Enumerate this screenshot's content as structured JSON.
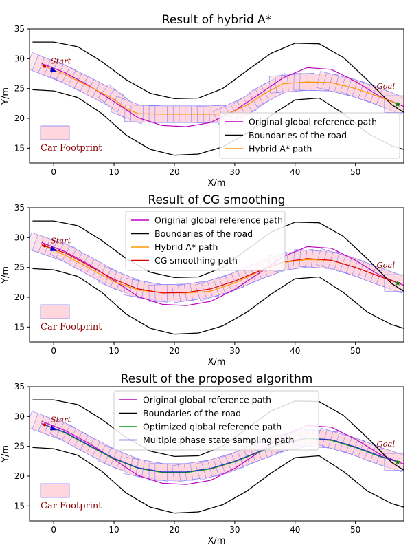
{
  "chart_data": [
    {
      "type": "line",
      "title": "Result of hybrid A*",
      "xlabel": "X/m",
      "ylabel": "Y/m",
      "xlim": [
        -4,
        58
      ],
      "ylim": [
        12.5,
        35
      ],
      "xticks": [
        0,
        10,
        20,
        30,
        40,
        50
      ],
      "yticks": [
        15,
        20,
        25,
        30,
        35
      ],
      "legend": [
        "Original global reference path",
        "Boundaries of the road",
        "Hybrid A* path"
      ],
      "legend_position": "lower-right",
      "annotations": {
        "start": "Start",
        "goal": "Goal",
        "footprint": "Car Footprint"
      },
      "series": [
        {
          "name": "Original global reference path",
          "color": "#c000c0",
          "x": [
            -2,
            2,
            6,
            10,
            14,
            18,
            22,
            26,
            30,
            34,
            38,
            42,
            46,
            50,
            54,
            58
          ],
          "y": [
            29.2,
            27.6,
            25.4,
            22.8,
            20.1,
            18.8,
            18.6,
            19.3,
            21.3,
            24.0,
            26.8,
            28.5,
            28.2,
            26.2,
            23.7,
            22.0
          ]
        },
        {
          "name": "Boundaries of the road",
          "color": "#000000",
          "x": [
            -3.5,
            0,
            4,
            8,
            12,
            16,
            20,
            24,
            28,
            32,
            36,
            40,
            44,
            48,
            52,
            56,
            58
          ],
          "y": [
            32.8,
            32.8,
            32.0,
            29.5,
            26.5,
            24.2,
            23.3,
            23.4,
            25.0,
            28.0,
            30.9,
            32.6,
            32.5,
            30.2,
            26.4,
            22.3,
            21.0
          ]
        },
        {
          "name": "Boundaries of the road (lower)",
          "color": "#000000",
          "x": [
            -3.5,
            0,
            4,
            8,
            12,
            16,
            20,
            24,
            28,
            32,
            36,
            40,
            44,
            48,
            52,
            56,
            58
          ],
          "y": [
            24.8,
            24.6,
            23.5,
            20.8,
            17.2,
            14.8,
            13.8,
            14.0,
            15.2,
            17.5,
            20.5,
            23.1,
            23.4,
            20.8,
            17.5,
            15.4,
            14.8
          ]
        },
        {
          "name": "Hybrid A* path",
          "color": "#ff9900",
          "x": [
            -2,
            2,
            6,
            10,
            12,
            14,
            18,
            22,
            26,
            29,
            32,
            35,
            38,
            42,
            46,
            50,
            54,
            57
          ],
          "y": [
            28.9,
            27.3,
            25.3,
            23.2,
            21.6,
            20.8,
            20.7,
            20.7,
            20.7,
            20.8,
            22.2,
            24.2,
            25.8,
            26.1,
            26.0,
            25.0,
            23.6,
            22.4
          ]
        }
      ]
    },
    {
      "type": "line",
      "title": "Result of CG smoothing",
      "xlabel": "X/m",
      "ylabel": "Y/m",
      "xlim": [
        -4,
        58
      ],
      "ylim": [
        12.5,
        35
      ],
      "xticks": [
        0,
        10,
        20,
        30,
        40,
        50
      ],
      "yticks": [
        15,
        20,
        25,
        30,
        35
      ],
      "legend": [
        "Original global reference path",
        "Boundaries of the road",
        "Hybrid A* path",
        "CG smoothing path"
      ],
      "legend_position": "upper-center",
      "annotations": {
        "start": "Start",
        "goal": "Goal",
        "footprint": "Car Footprint"
      },
      "series": [
        {
          "name": "Original global reference path",
          "color": "#c000c0",
          "x": [
            -2,
            2,
            6,
            10,
            14,
            18,
            22,
            26,
            30,
            34,
            38,
            42,
            46,
            50,
            54,
            58
          ],
          "y": [
            29.2,
            27.6,
            25.4,
            22.8,
            20.1,
            18.8,
            18.6,
            19.3,
            21.3,
            24.0,
            26.8,
            28.5,
            28.2,
            26.2,
            23.7,
            22.0
          ]
        },
        {
          "name": "Boundaries of the road",
          "color": "#000000",
          "x": [
            -3.5,
            0,
            4,
            8,
            12,
            16,
            20,
            24,
            28,
            32,
            36,
            40,
            44,
            48,
            52,
            56,
            58
          ],
          "y": [
            32.8,
            32.8,
            32.0,
            29.5,
            26.5,
            24.2,
            23.3,
            23.4,
            25.0,
            28.0,
            30.9,
            32.6,
            32.5,
            30.2,
            26.4,
            22.3,
            21.0
          ]
        },
        {
          "name": "Boundaries of the road (lower)",
          "color": "#000000",
          "x": [
            -3.5,
            0,
            4,
            8,
            12,
            16,
            20,
            24,
            28,
            32,
            36,
            40,
            44,
            48,
            52,
            56,
            58
          ],
          "y": [
            24.8,
            24.6,
            23.5,
            20.8,
            17.2,
            14.8,
            13.8,
            14.0,
            15.2,
            17.5,
            20.5,
            23.1,
            23.4,
            20.8,
            17.5,
            15.4,
            14.8
          ]
        },
        {
          "name": "Hybrid A* path",
          "color": "#ff9900",
          "x": [
            -2,
            2,
            6,
            10,
            14,
            18,
            22,
            26,
            30,
            34,
            38,
            42,
            46,
            50,
            54,
            57
          ],
          "y": [
            28.8,
            27.0,
            24.8,
            22.6,
            21.2,
            20.8,
            20.7,
            21.0,
            22.4,
            24.3,
            25.8,
            26.3,
            26.2,
            25.0,
            23.5,
            22.4
          ]
        },
        {
          "name": "CG smoothing path",
          "color": "#e00000",
          "x": [
            -2,
            2,
            6,
            10,
            14,
            18,
            22,
            26,
            30,
            34,
            38,
            42,
            46,
            50,
            54,
            57
          ],
          "y": [
            28.8,
            27.4,
            25.2,
            23.0,
            21.4,
            20.7,
            20.8,
            21.4,
            22.7,
            24.4,
            25.9,
            26.5,
            26.2,
            25.0,
            23.5,
            22.4
          ]
        }
      ]
    },
    {
      "type": "line",
      "title": "Result of the proposed algorithm",
      "xlabel": "X/m",
      "ylabel": "Y/m",
      "xlim": [
        -4,
        58
      ],
      "ylim": [
        12.5,
        35
      ],
      "xticks": [
        0,
        10,
        20,
        30,
        40,
        50
      ],
      "yticks": [
        15,
        20,
        25,
        30,
        35
      ],
      "legend": [
        "Original global reference path",
        "Boundaries of the road",
        "Optimized global reference path",
        "Multiple phase state sampling path"
      ],
      "legend_position": "upper-center",
      "annotations": {
        "start": "Start",
        "goal": "Goal",
        "footprint": "Car Footprint"
      },
      "series": [
        {
          "name": "Original global reference path",
          "color": "#c000c0",
          "x": [
            -2,
            2,
            6,
            10,
            14,
            18,
            22,
            26,
            30,
            34,
            38,
            42,
            46,
            50,
            54,
            58
          ],
          "y": [
            29.2,
            27.6,
            25.4,
            22.8,
            20.1,
            18.8,
            18.6,
            19.3,
            21.3,
            24.0,
            26.8,
            28.5,
            28.2,
            26.2,
            23.7,
            22.0
          ]
        },
        {
          "name": "Boundaries of the road",
          "color": "#000000",
          "x": [
            -3.5,
            0,
            4,
            8,
            12,
            16,
            20,
            24,
            28,
            32,
            36,
            40,
            44,
            48,
            52,
            56,
            58
          ],
          "y": [
            32.8,
            32.8,
            32.0,
            29.5,
            26.5,
            24.2,
            23.3,
            23.4,
            25.0,
            28.0,
            30.9,
            32.6,
            32.5,
            30.2,
            26.4,
            22.3,
            21.0
          ]
        },
        {
          "name": "Boundaries of the road (lower)",
          "color": "#000000",
          "x": [
            -3.5,
            0,
            4,
            8,
            12,
            16,
            20,
            24,
            28,
            32,
            36,
            40,
            44,
            48,
            52,
            56,
            58
          ],
          "y": [
            24.8,
            24.6,
            23.5,
            20.8,
            17.2,
            14.8,
            13.8,
            14.0,
            15.2,
            17.5,
            20.5,
            23.1,
            23.4,
            20.8,
            17.5,
            15.4,
            14.8
          ]
        },
        {
          "name": "Optimized global reference path",
          "color": "#00a000",
          "x": [
            -2,
            2,
            6,
            10,
            14,
            18,
            22,
            26,
            30,
            34,
            38,
            42,
            46,
            50,
            54,
            57
          ],
          "y": [
            28.8,
            27.2,
            25.0,
            22.9,
            21.3,
            20.6,
            20.6,
            21.2,
            22.4,
            24.0,
            25.5,
            26.3,
            26.0,
            24.8,
            23.3,
            22.4
          ]
        },
        {
          "name": "Multiple phase state sampling path",
          "color": "#3030d0",
          "x": [
            -2,
            2,
            6,
            10,
            14,
            18,
            22,
            26,
            30,
            34,
            38,
            42,
            46,
            50,
            54,
            57
          ],
          "y": [
            28.8,
            27.3,
            25.1,
            23.0,
            21.4,
            20.7,
            20.7,
            21.3,
            22.5,
            24.1,
            25.6,
            26.4,
            26.1,
            24.9,
            23.4,
            22.4
          ]
        }
      ]
    }
  ],
  "colors": {
    "footprint_fill": "#ffd6dc",
    "footprint_edge": "#8080ff",
    "start_marker": "#e00000",
    "start_arrow": "#0000cc",
    "goal_marker": "#008000"
  }
}
